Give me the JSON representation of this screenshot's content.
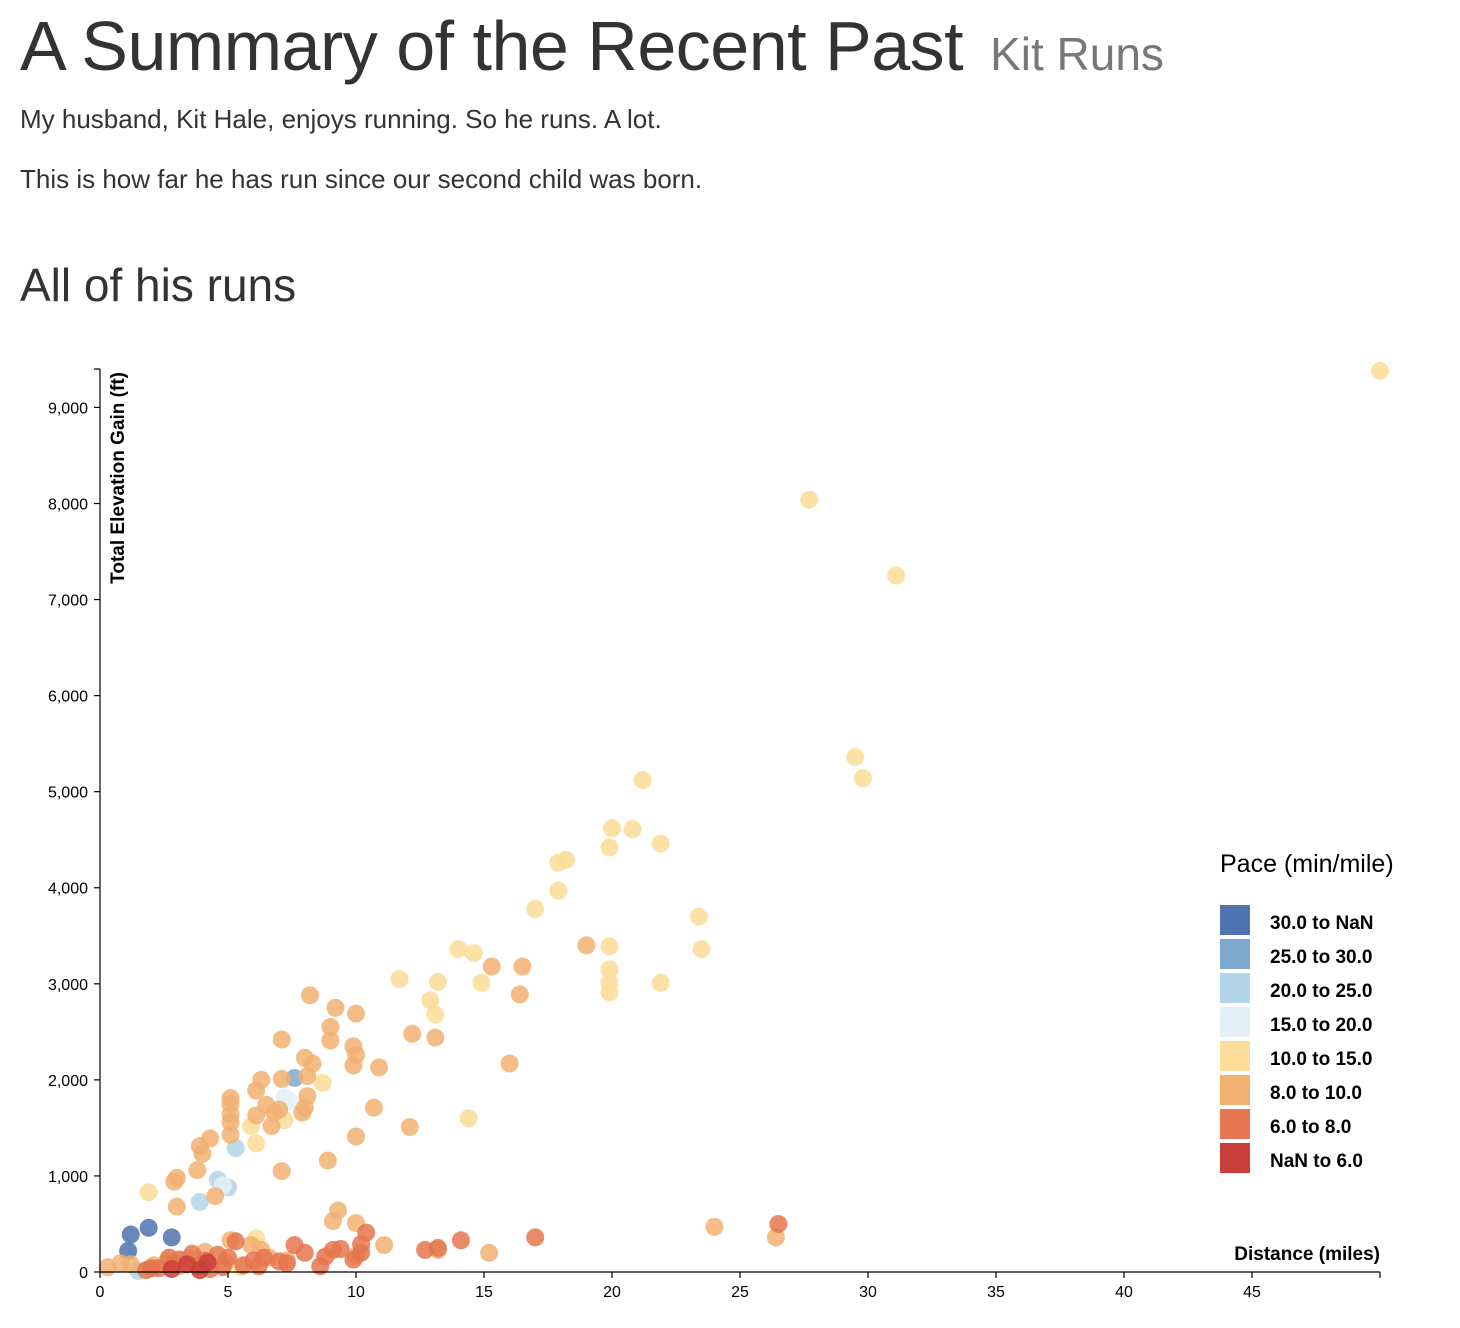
{
  "header": {
    "title": "A Summary of the Recent Past",
    "subtitle": "Kit Runs",
    "intro_line_1": "My husband, Kit Hale, enjoys running. So he runs. A lot.",
    "intro_line_2": "This is how far he has run since our second child was born."
  },
  "section": {
    "title": "All of his runs"
  },
  "chart_data": {
    "type": "scatter",
    "xlabel": "Distance (miles)",
    "ylabel": "Total Elevation Gain (ft)",
    "xlim": [
      0,
      50
    ],
    "ylim": [
      0,
      9400
    ],
    "x_ticks": [
      0,
      5,
      10,
      15,
      20,
      25,
      30,
      35,
      40,
      45
    ],
    "x_tick_labels": [
      "0",
      "5",
      "10",
      "15",
      "20",
      "25",
      "30",
      "35",
      "40",
      "45"
    ],
    "y_ticks": [
      0,
      1000,
      2000,
      3000,
      4000,
      5000,
      6000,
      7000,
      8000,
      9000
    ],
    "y_tick_labels": [
      "0",
      "1,000",
      "2,000",
      "3,000",
      "4,000",
      "5,000",
      "6,000",
      "7,000",
      "8,000",
      "9,000"
    ],
    "grid": false,
    "legend": {
      "title": "Pace (min/mile)",
      "placement": "right",
      "entries": [
        {
          "label": "30.0 to NaN",
          "color": "#4e73b0"
        },
        {
          "label": "25.0 to 30.0",
          "color": "#7ea9cf"
        },
        {
          "label": "20.0 to 25.0",
          "color": "#b4d5e7"
        },
        {
          "label": "15.0 to 20.0",
          "color": "#e3f1f6"
        },
        {
          "label": "10.0 to 15.0",
          "color": "#fbdc98"
        },
        {
          "label": "8.0 to 10.0",
          "color": "#f2b072"
        },
        {
          "label": "6.0 to 8.0",
          "color": "#e5764f"
        },
        {
          "label": "NaN to 6.0",
          "color": "#c9403a"
        }
      ]
    },
    "series": [
      {
        "pace_bin": 0,
        "points": [
          [
            1.1,
            220
          ],
          [
            1.2,
            390
          ],
          [
            1.9,
            460
          ],
          [
            2.8,
            360
          ]
        ]
      },
      {
        "pace_bin": 1,
        "points": [
          [
            7.6,
            2020
          ]
        ]
      },
      {
        "pace_bin": 2,
        "points": [
          [
            4.6,
            960
          ],
          [
            3.9,
            730
          ],
          [
            5.0,
            880
          ],
          [
            5.3,
            1290
          ],
          [
            1.5,
            10
          ]
        ]
      },
      {
        "pace_bin": 3,
        "points": [
          [
            7.2,
            1820
          ],
          [
            7.4,
            1780
          ],
          [
            4.8,
            900
          ]
        ]
      },
      {
        "pace_bin": 4,
        "points": [
          [
            50.0,
            9380
          ],
          [
            27.7,
            8040
          ],
          [
            31.1,
            7250
          ],
          [
            29.5,
            5360
          ],
          [
            29.8,
            5140
          ],
          [
            21.2,
            5120
          ],
          [
            20.0,
            4620
          ],
          [
            20.8,
            4610
          ],
          [
            19.9,
            4420
          ],
          [
            21.9,
            4460
          ],
          [
            18.2,
            4290
          ],
          [
            17.9,
            4260
          ],
          [
            17.9,
            3970
          ],
          [
            17.0,
            3780
          ],
          [
            23.4,
            3700
          ],
          [
            23.5,
            3360
          ],
          [
            14.0,
            3360
          ],
          [
            14.6,
            3320
          ],
          [
            19.9,
            3390
          ],
          [
            19.9,
            3150
          ],
          [
            19.9,
            3010
          ],
          [
            19.9,
            2910
          ],
          [
            21.9,
            3010
          ],
          [
            14.9,
            3010
          ],
          [
            11.7,
            3050
          ],
          [
            13.2,
            3020
          ],
          [
            12.9,
            2830
          ],
          [
            13.1,
            2680
          ],
          [
            8.7,
            1970
          ],
          [
            14.4,
            1600
          ],
          [
            7.2,
            1580
          ],
          [
            5.9,
            1520
          ],
          [
            6.1,
            1340
          ],
          [
            1.9,
            830
          ],
          [
            6.1,
            350
          ],
          [
            5.5,
            50
          ]
        ]
      },
      {
        "pace_bin": 5,
        "points": [
          [
            8.2,
            2880
          ],
          [
            9.2,
            2750
          ],
          [
            10.0,
            2690
          ],
          [
            9.0,
            2550
          ],
          [
            9.0,
            2410
          ],
          [
            7.1,
            2420
          ],
          [
            9.9,
            2350
          ],
          [
            10.0,
            2260
          ],
          [
            9.9,
            2150
          ],
          [
            8.0,
            2230
          ],
          [
            8.3,
            2170
          ],
          [
            10.9,
            2130
          ],
          [
            8.1,
            2040
          ],
          [
            7.1,
            2010
          ],
          [
            6.3,
            2000
          ],
          [
            6.1,
            1890
          ],
          [
            8.1,
            1830
          ],
          [
            8.0,
            1710
          ],
          [
            7.9,
            1660
          ],
          [
            6.5,
            1740
          ],
          [
            6.8,
            1660
          ],
          [
            7.0,
            1690
          ],
          [
            6.1,
            1630
          ],
          [
            6.7,
            1520
          ],
          [
            5.1,
            1810
          ],
          [
            5.1,
            1750
          ],
          [
            5.1,
            1640
          ],
          [
            5.1,
            1560
          ],
          [
            5.1,
            1430
          ],
          [
            4.3,
            1390
          ],
          [
            3.9,
            1310
          ],
          [
            4.0,
            1230
          ],
          [
            3.8,
            1060
          ],
          [
            3.0,
            980
          ],
          [
            2.9,
            940
          ],
          [
            3.0,
            680
          ],
          [
            4.5,
            790
          ],
          [
            10.0,
            1410
          ],
          [
            10.7,
            1710
          ],
          [
            12.1,
            1510
          ],
          [
            8.9,
            1160
          ],
          [
            7.1,
            1050
          ],
          [
            12.2,
            2480
          ],
          [
            13.1,
            2440
          ],
          [
            16.0,
            2170
          ],
          [
            15.3,
            3180
          ],
          [
            16.5,
            3180
          ],
          [
            16.4,
            2890
          ],
          [
            19.0,
            3400
          ],
          [
            24.0,
            470
          ],
          [
            26.4,
            360
          ],
          [
            15.2,
            200
          ],
          [
            13.2,
            230
          ],
          [
            11.1,
            280
          ],
          [
            9.3,
            640
          ],
          [
            9.1,
            530
          ],
          [
            10.0,
            510
          ],
          [
            10.0,
            170
          ],
          [
            5.1,
            330
          ],
          [
            5.9,
            280
          ],
          [
            6.3,
            230
          ],
          [
            4.1,
            210
          ],
          [
            3.5,
            140
          ],
          [
            2.6,
            110
          ],
          [
            2.1,
            70
          ],
          [
            1.2,
            80
          ],
          [
            0.8,
            90
          ],
          [
            0.3,
            50
          ],
          [
            4.9,
            100
          ],
          [
            6.6,
            150
          ],
          [
            7.3,
            120
          ],
          [
            3.1,
            60
          ]
        ]
      },
      {
        "pace_bin": 6,
        "points": [
          [
            26.5,
            500
          ],
          [
            17.0,
            360
          ],
          [
            14.1,
            330
          ],
          [
            12.7,
            230
          ],
          [
            13.2,
            250
          ],
          [
            10.4,
            410
          ],
          [
            10.2,
            290
          ],
          [
            9.4,
            240
          ],
          [
            9.1,
            230
          ],
          [
            8.8,
            160
          ],
          [
            8.0,
            200
          ],
          [
            7.6,
            280
          ],
          [
            7.0,
            110
          ],
          [
            6.4,
            150
          ],
          [
            6.0,
            120
          ],
          [
            5.3,
            320
          ],
          [
            5.0,
            150
          ],
          [
            4.6,
            180
          ],
          [
            4.1,
            120
          ],
          [
            3.6,
            190
          ],
          [
            3.1,
            130
          ],
          [
            2.7,
            150
          ],
          [
            2.3,
            40
          ],
          [
            2.0,
            40
          ],
          [
            1.8,
            20
          ],
          [
            3.8,
            60
          ],
          [
            4.3,
            30
          ],
          [
            4.8,
            50
          ],
          [
            5.6,
            70
          ],
          [
            6.2,
            60
          ],
          [
            7.3,
            90
          ],
          [
            8.6,
            60
          ],
          [
            9.9,
            130
          ],
          [
            10.2,
            200
          ],
          [
            2.9,
            90
          ],
          [
            4.0,
            90
          ]
        ]
      },
      {
        "pace_bin": 7,
        "points": [
          [
            3.4,
            80
          ],
          [
            3.9,
            20
          ],
          [
            4.2,
            100
          ],
          [
            2.8,
            30
          ]
        ]
      }
    ]
  }
}
